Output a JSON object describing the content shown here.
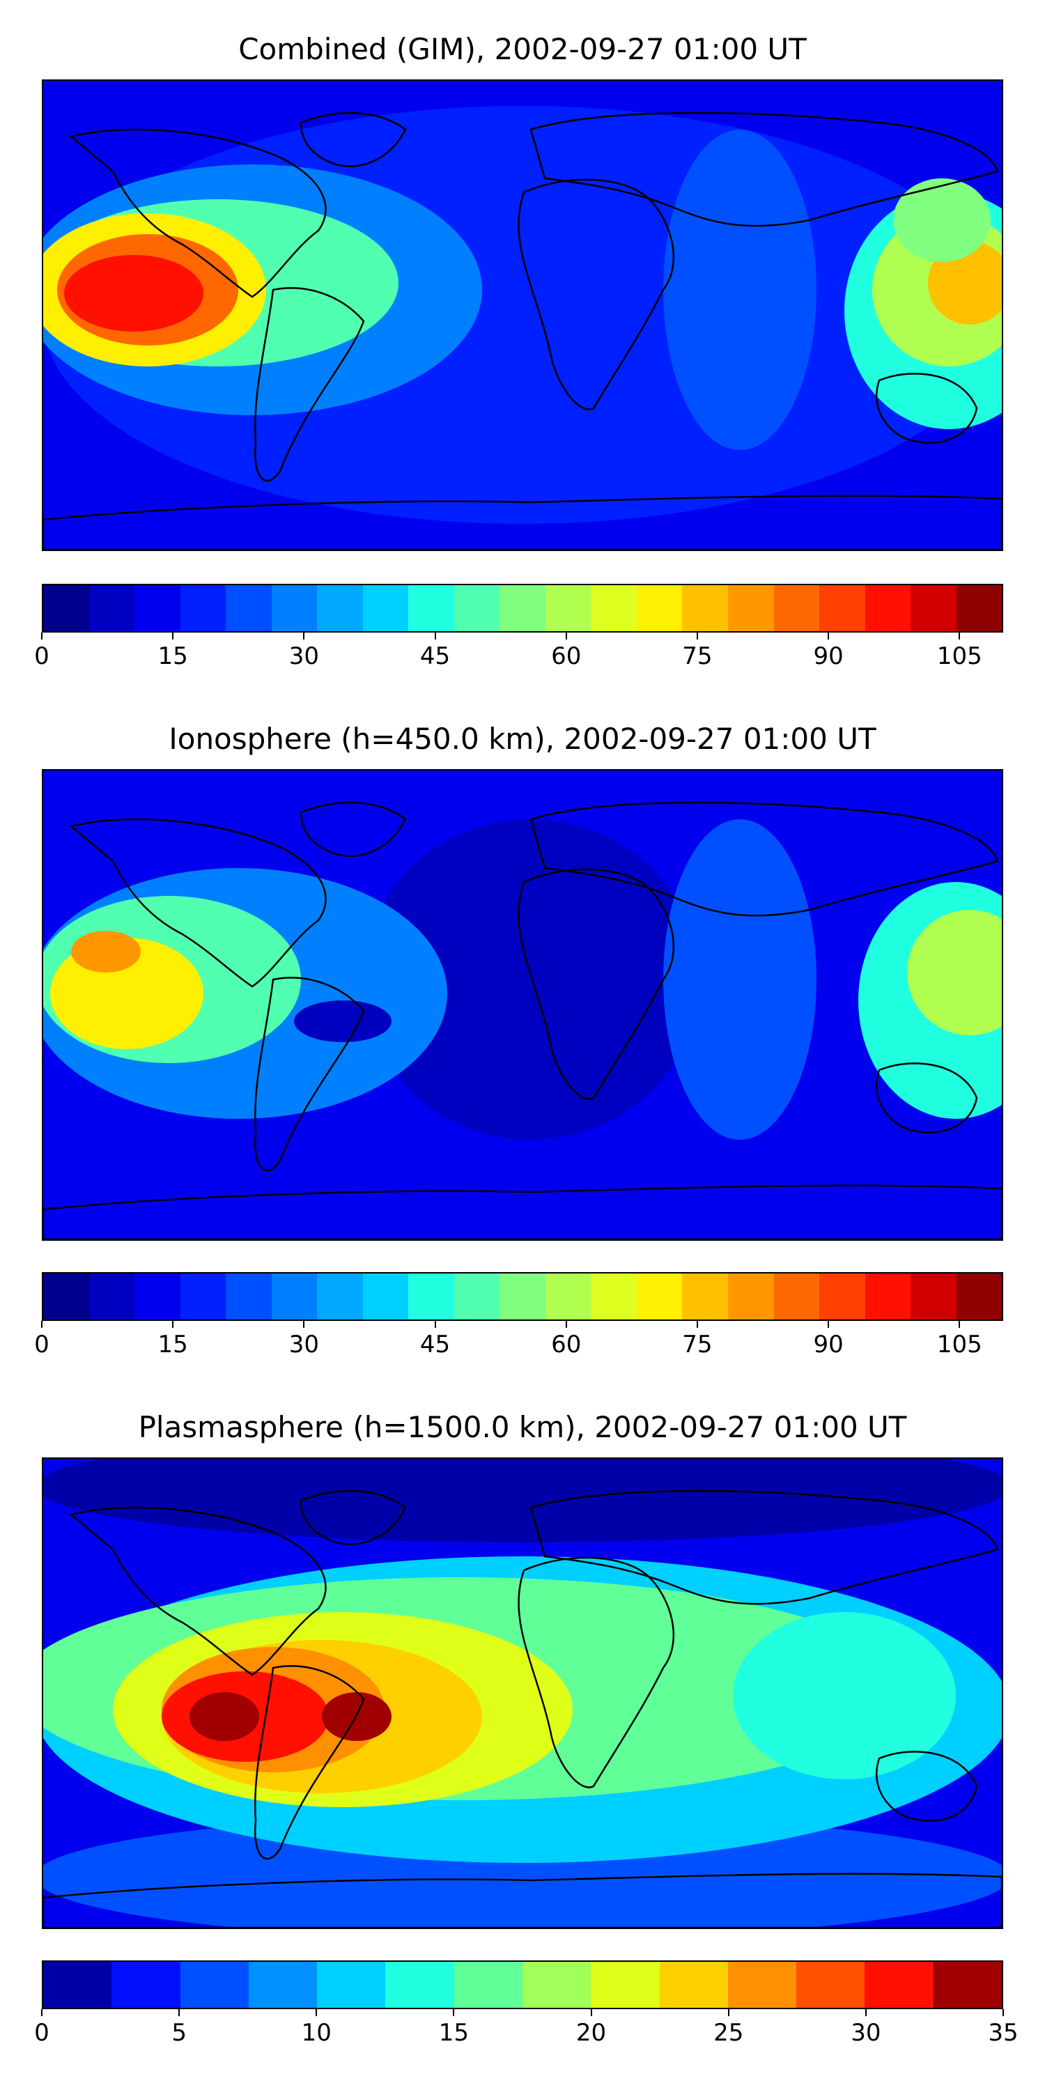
{
  "panels": [
    {
      "title": "Combined (GIM), 2002-09-27 01:00 UT",
      "vmin": 0,
      "vmax": 110,
      "ticks": [
        "0",
        "15",
        "30",
        "45",
        "60",
        "75",
        "90",
        "105"
      ],
      "tick_values": [
        0,
        15,
        30,
        45,
        60,
        75,
        90,
        105
      ],
      "colors": [
        "#00008f",
        "#0000c0",
        "#0000ef",
        "#0020ff",
        "#0050ff",
        "#0080ff",
        "#00a8ff",
        "#00d0ff",
        "#20ffe0",
        "#50ffb0",
        "#80ff80",
        "#b0ff50",
        "#dfff20",
        "#ffef00",
        "#ffc000",
        "#ff9800",
        "#ff6800",
        "#ff4000",
        "#ff1000",
        "#d00000",
        "#900000"
      ],
      "background": "#0000ef"
    },
    {
      "title": "Ionosphere  (h=450.0 km), 2002-09-27 01:00 UT",
      "vmin": 0,
      "vmax": 110,
      "ticks": [
        "0",
        "15",
        "30",
        "45",
        "60",
        "75",
        "90",
        "105"
      ],
      "tick_values": [
        0,
        15,
        30,
        45,
        60,
        75,
        90,
        105
      ],
      "colors": [
        "#00008f",
        "#0000c0",
        "#0000ef",
        "#0020ff",
        "#0050ff",
        "#0080ff",
        "#00a8ff",
        "#00d0ff",
        "#20ffe0",
        "#50ffb0",
        "#80ff80",
        "#b0ff50",
        "#dfff20",
        "#ffef00",
        "#ffc000",
        "#ff9800",
        "#ff6800",
        "#ff4000",
        "#ff1000",
        "#d00000",
        "#900000"
      ],
      "background": "#0000ef"
    },
    {
      "title": "Plasmasphere (h=1500.0 km), 2002-09-27 01:00 UT",
      "vmin": 0,
      "vmax": 35,
      "ticks": [
        "0",
        "5",
        "10",
        "15",
        "20",
        "25",
        "30",
        "35"
      ],
      "tick_values": [
        0,
        5,
        10,
        15,
        20,
        25,
        30,
        35
      ],
      "colors": [
        "#0000a8",
        "#0010ff",
        "#0050ff",
        "#0090ff",
        "#00d0ff",
        "#20ffe0",
        "#60ff98",
        "#a0ff58",
        "#e0ff18",
        "#ffd000",
        "#ff9000",
        "#ff5000",
        "#ff1000",
        "#a00000"
      ],
      "background": "#0000ef"
    }
  ]
}
